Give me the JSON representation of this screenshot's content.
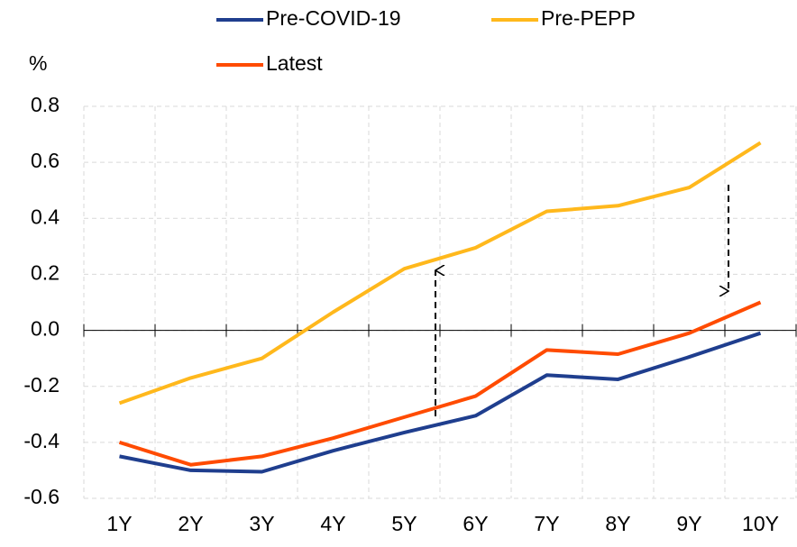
{
  "chart_data": {
    "type": "line",
    "y_label": "%",
    "categories": [
      "1Y",
      "2Y",
      "3Y",
      "4Y",
      "5Y",
      "6Y",
      "7Y",
      "8Y",
      "9Y",
      "10Y"
    ],
    "series": [
      {
        "name": "Pre-COVID-19",
        "color": "#1f3e8e",
        "values": [
          -0.45,
          -0.5,
          -0.505,
          -0.43,
          -0.365,
          -0.305,
          -0.16,
          -0.175,
          -0.095,
          -0.01
        ]
      },
      {
        "name": "Pre-PEPP",
        "color": "#ffb81c",
        "values": [
          -0.26,
          -0.17,
          -0.1,
          0.065,
          0.22,
          0.295,
          0.425,
          0.445,
          0.51,
          0.67
        ]
      },
      {
        "name": "Latest",
        "color": "#ff4b00",
        "values": [
          -0.4,
          -0.48,
          -0.45,
          -0.385,
          -0.31,
          -0.235,
          -0.07,
          -0.085,
          -0.01,
          0.1
        ]
      }
    ],
    "ylim": [
      -0.6,
      0.8
    ],
    "yticks": [
      0.8,
      0.6,
      0.4,
      0.2,
      {
        "value": 0,
        "label": "0.0"
      },
      -0.2,
      -0.4,
      -0.6
    ],
    "grid": true
  }
}
